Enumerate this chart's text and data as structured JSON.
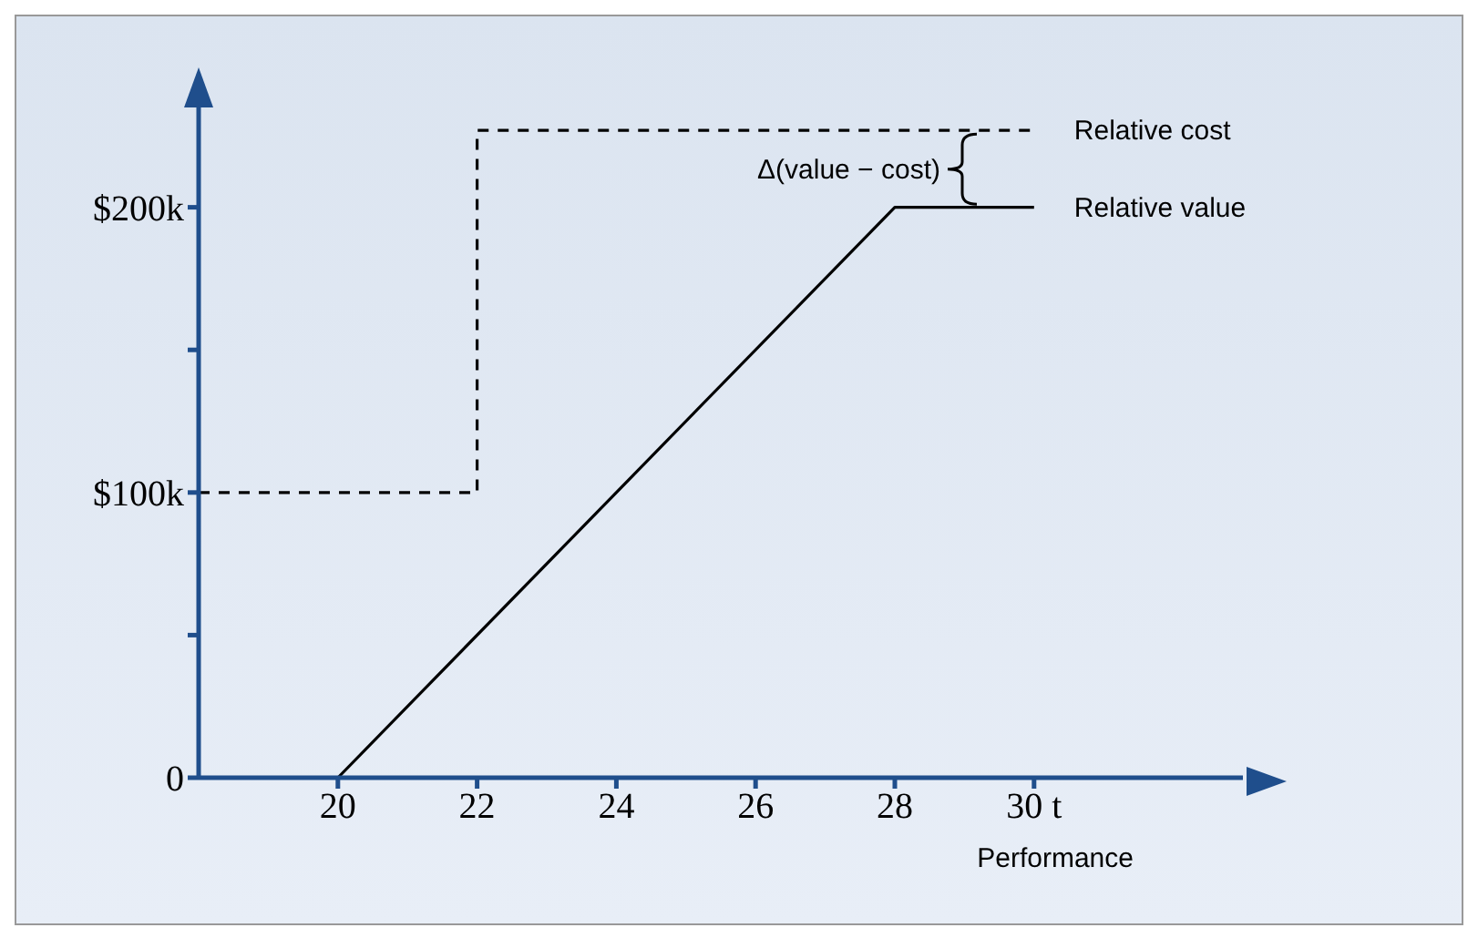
{
  "chart_data": {
    "type": "line",
    "xlabel": "Performance",
    "annotations": [
      "Δ(value − cost)"
    ],
    "xlim": [
      18,
      33
    ],
    "ylim": [
      0,
      235
    ],
    "xticks": [
      20,
      22,
      24,
      26,
      28,
      {
        "value": 30,
        "label": "30 t"
      }
    ],
    "yticks": [
      {
        "value": 0,
        "label": "0"
      },
      {
        "value": 50,
        "label": null
      },
      {
        "value": 100,
        "label": "$100k"
      },
      {
        "value": 150,
        "label": null
      },
      {
        "value": 200,
        "label": "$200k"
      }
    ],
    "grid": false,
    "legend": false,
    "marker": "none",
    "series": [
      {
        "name": "Relative cost",
        "type": "step",
        "line_style": "dashed",
        "color": "#000000",
        "x": [
          18,
          22,
          30
        ],
        "values": [
          100,
          227,
          227
        ]
      },
      {
        "name": "Relative value",
        "type": "line",
        "line_style": "solid",
        "color": "#000000",
        "x": [
          20,
          28,
          30
        ],
        "values": [
          0,
          200,
          200
        ]
      }
    ]
  }
}
